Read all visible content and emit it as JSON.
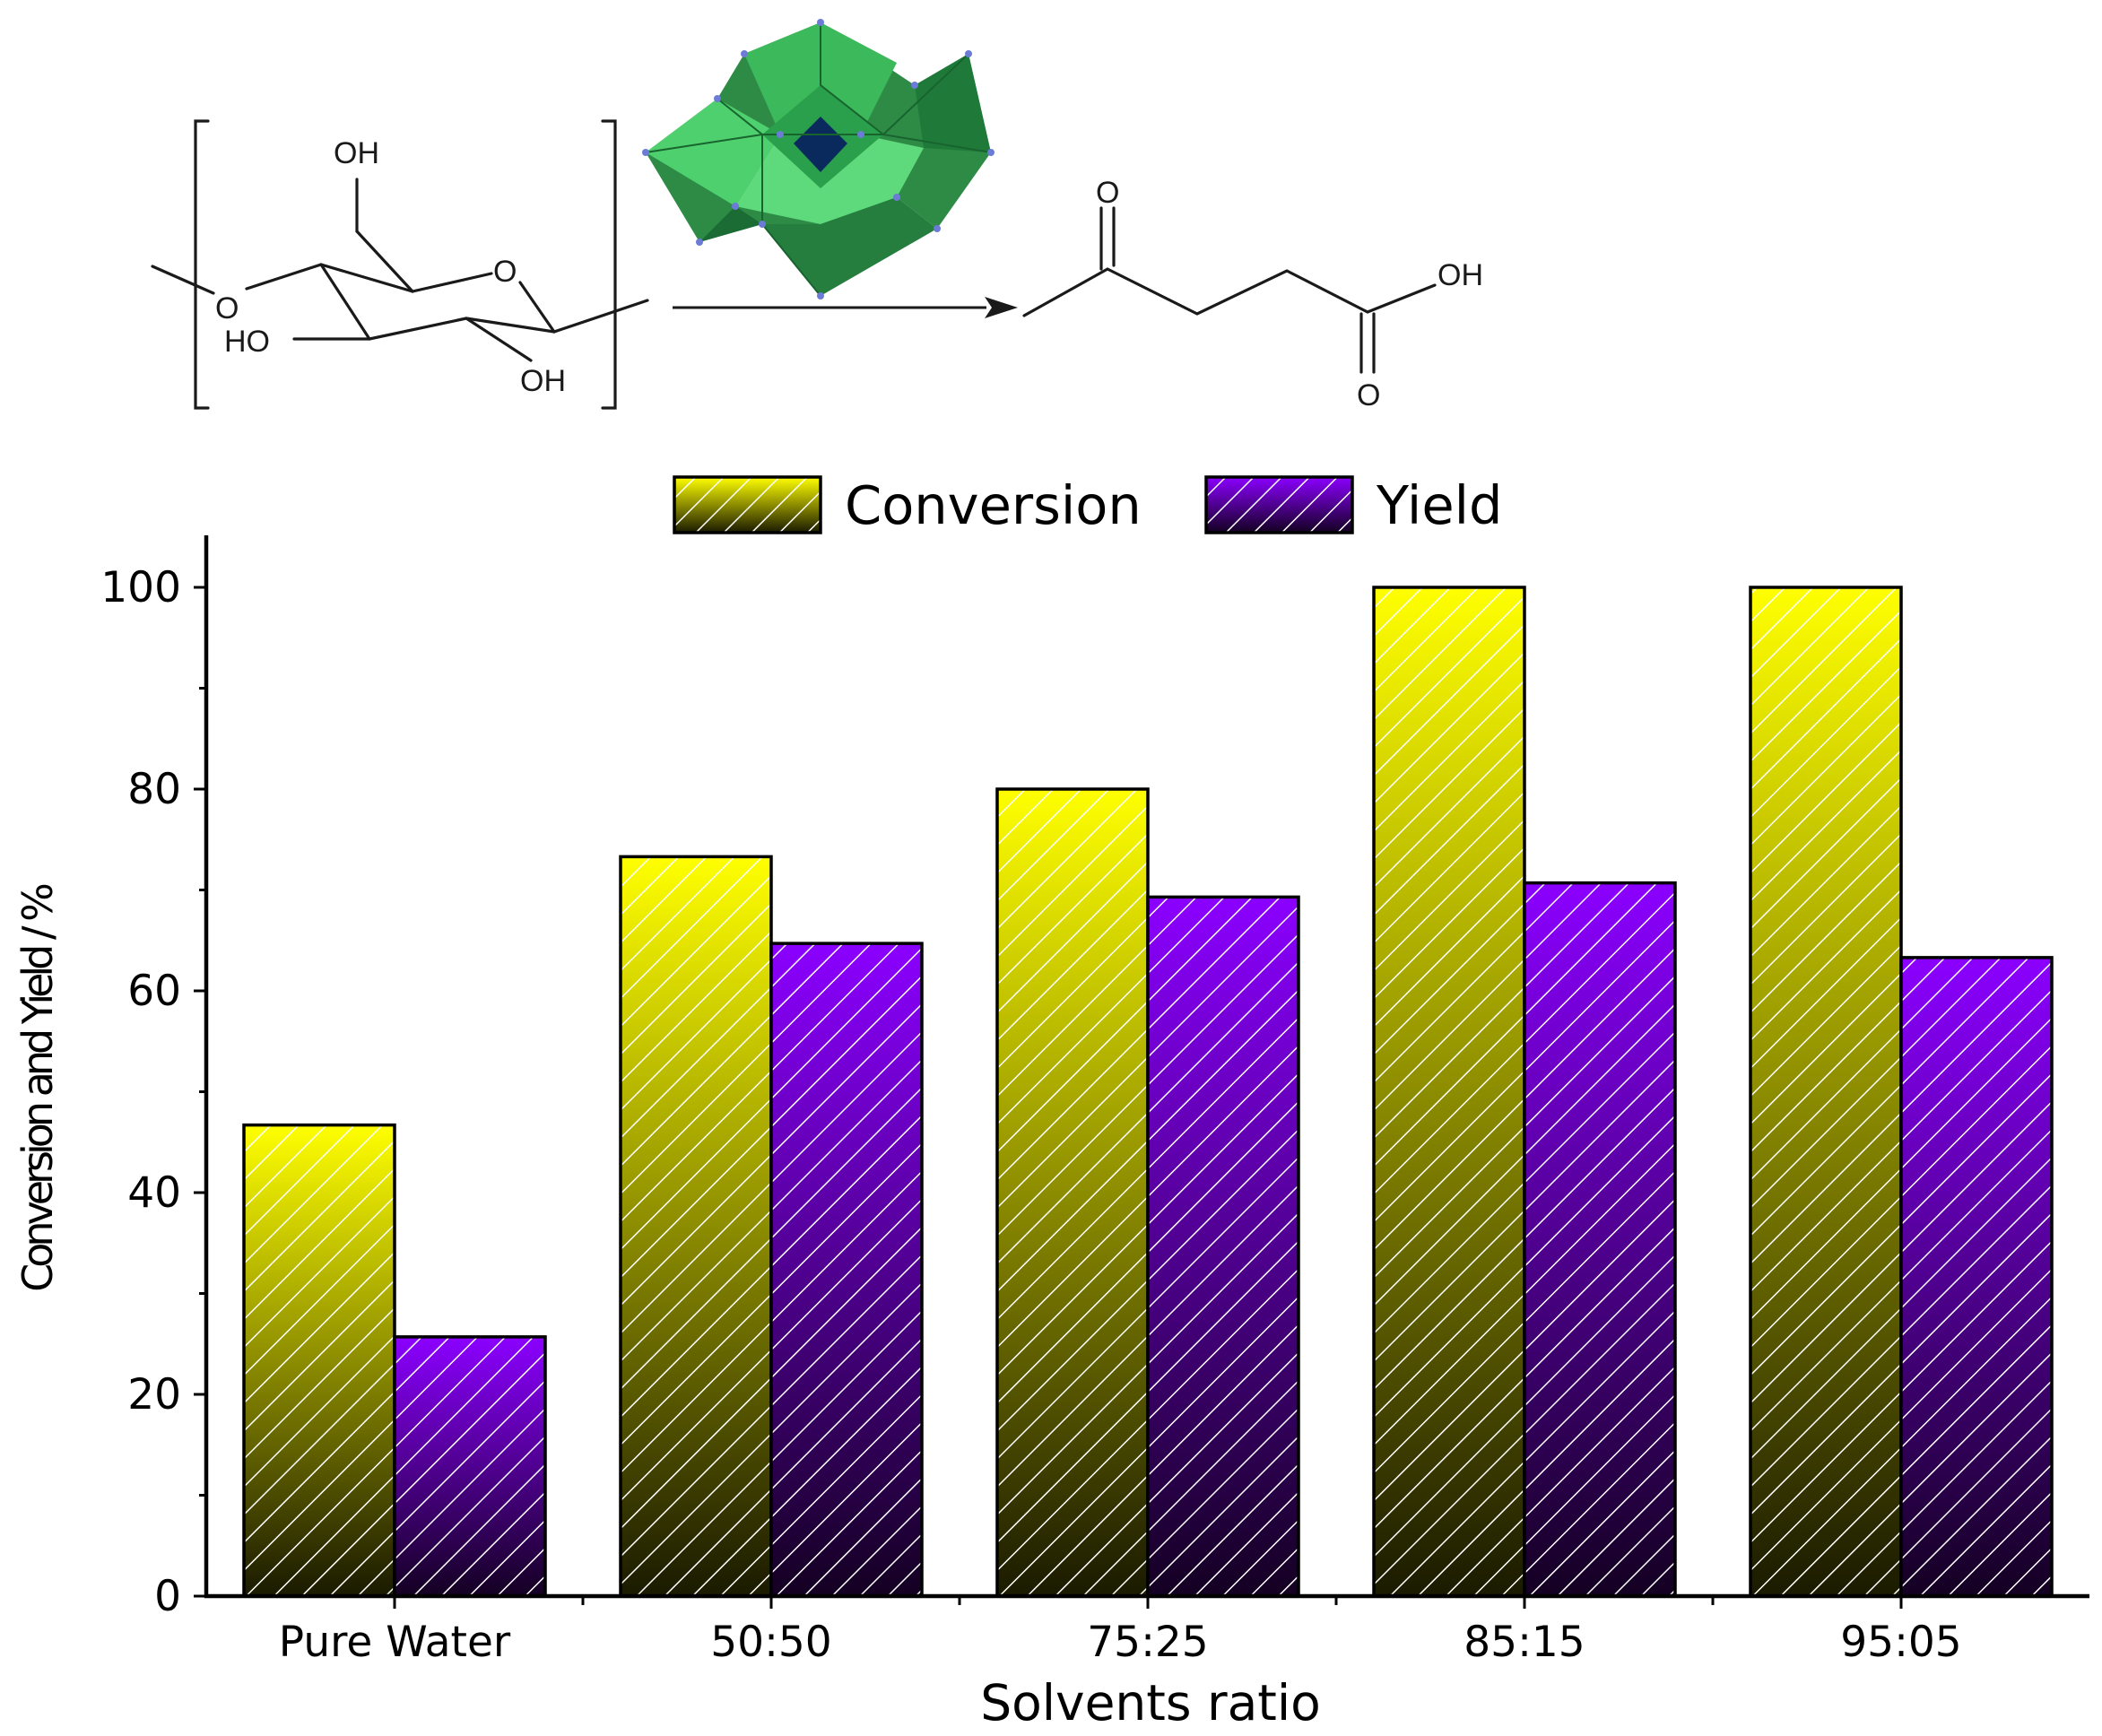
{
  "scheme": {
    "reactant_labels": [
      "OH",
      "O",
      "O",
      "HO",
      "OH"
    ],
    "product_labels": [
      "O",
      "OH",
      "O"
    ]
  },
  "chart_data": {
    "type": "bar",
    "categories": [
      "Pure Water",
      "50:50",
      "75:25",
      "85:15",
      "95:05"
    ],
    "series": [
      {
        "name": "Conversion",
        "values": [
          46.7,
          73.3,
          80.0,
          100.0,
          100.0
        ],
        "color_top": "#ffff00",
        "color_bottom": "#1a1a00"
      },
      {
        "name": "Yield",
        "values": [
          25.7,
          64.7,
          69.3,
          70.7,
          63.3
        ],
        "color_top": "#8b00ff",
        "color_bottom": "#140022"
      }
    ],
    "xlabel": "Solvents ratio",
    "ylabel": "Conversion and Yield / %",
    "ylim": [
      0,
      105
    ],
    "yticks": [
      "0",
      "20",
      "40",
      "60",
      "80",
      "100"
    ],
    "legend_position": "top-center",
    "grid": false,
    "pattern": "diagonal-hatch"
  }
}
